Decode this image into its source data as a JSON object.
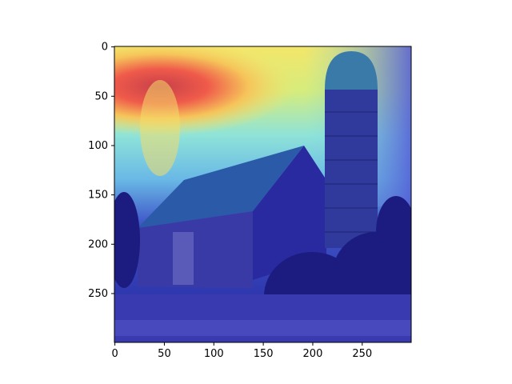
{
  "image": {
    "subject": "barn-and-silo-photo-with-attention-heatmap",
    "colormap": "jet"
  },
  "axes": {
    "x_ticks": [
      {
        "value": 0,
        "label": "0"
      },
      {
        "value": 50,
        "label": "50"
      },
      {
        "value": 100,
        "label": "100"
      },
      {
        "value": 150,
        "label": "150"
      },
      {
        "value": 200,
        "label": "200"
      },
      {
        "value": 250,
        "label": "250"
      }
    ],
    "y_ticks": [
      {
        "value": 0,
        "label": "0"
      },
      {
        "value": 50,
        "label": "50"
      },
      {
        "value": 100,
        "label": "100"
      },
      {
        "value": 150,
        "label": "150"
      },
      {
        "value": 200,
        "label": "200"
      },
      {
        "value": 250,
        "label": "250"
      }
    ],
    "x_range": [
      0,
      299
    ],
    "y_range": [
      0,
      299
    ],
    "y_inverted": true
  },
  "colors": {
    "frame": "#000000",
    "background": "#ffffff",
    "hot": "#e0404a",
    "warm": "#f2e66a",
    "cool": "#7fe3e0",
    "cold": "#2a2aa8"
  }
}
